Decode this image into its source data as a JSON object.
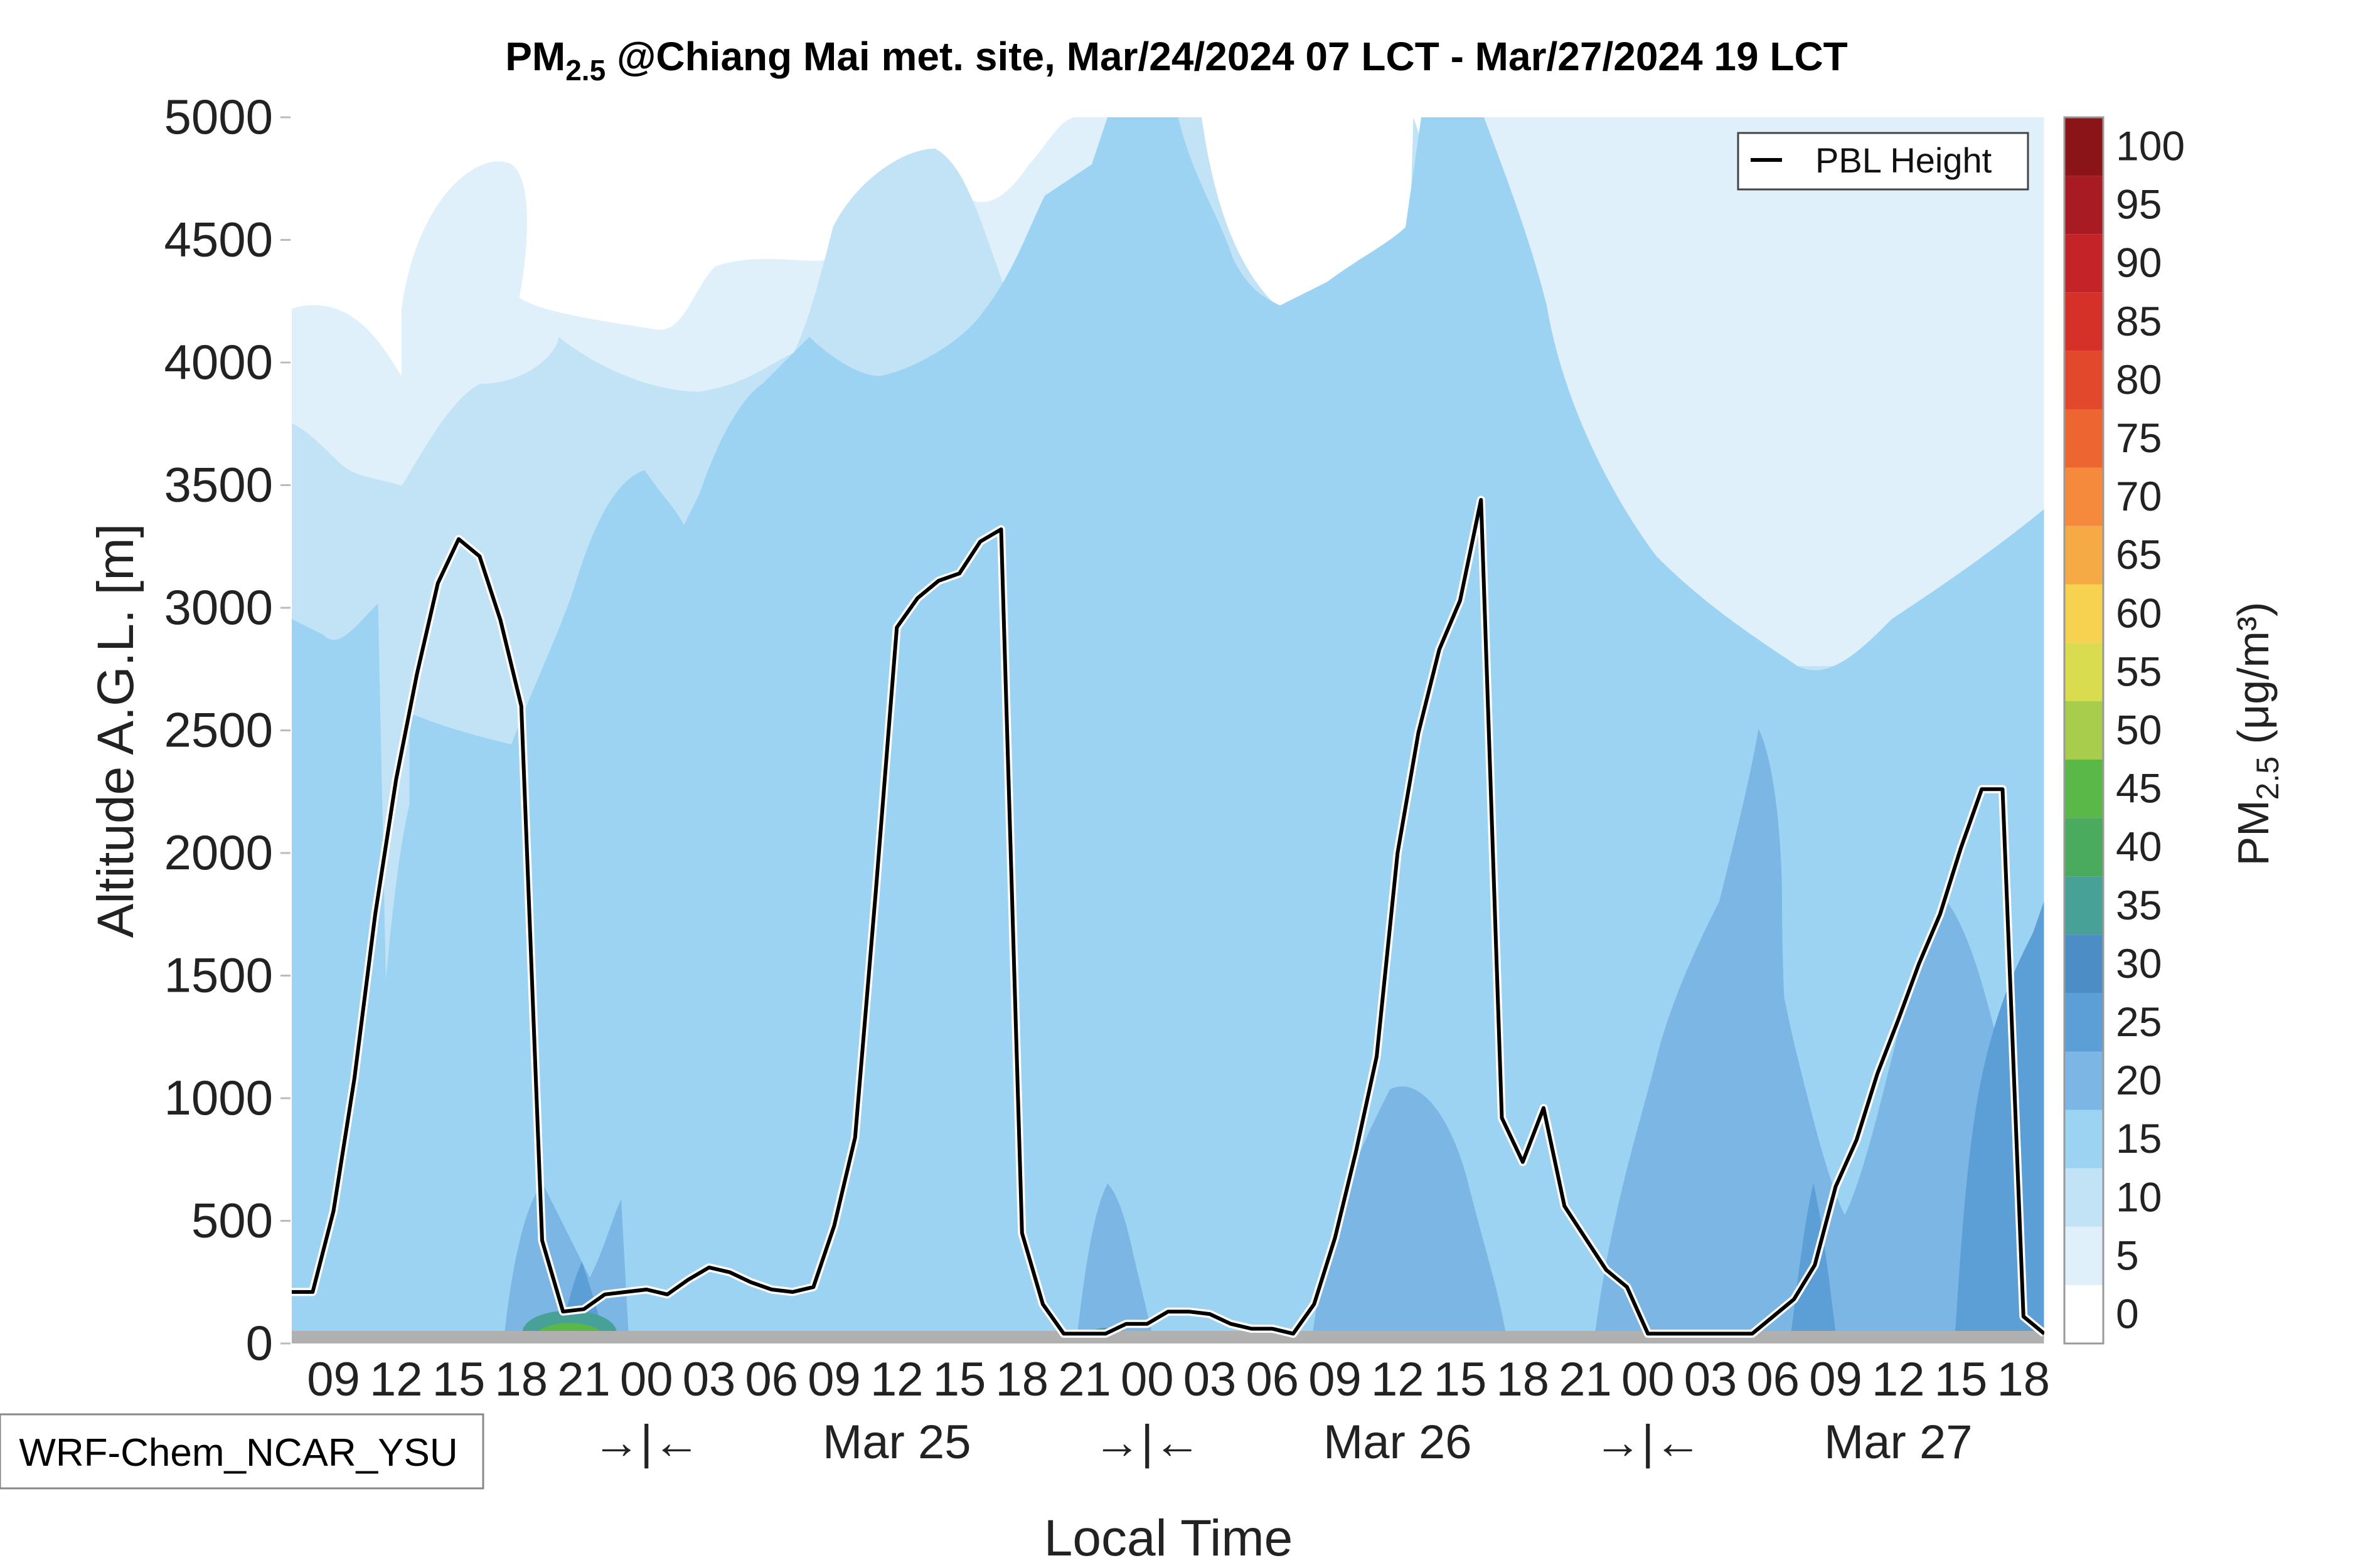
{
  "chart_data": {
    "type": "contour",
    "title_main": "PM",
    "title_sub": "2.5",
    "title_rest": " @Chiang Mai met. site, Mar/24/2024 07 LCT - Mar/27/2024 19 LCT",
    "xlabel": "Local Time",
    "ylabel": "Altitude A.G.L. [m]",
    "ylim": [
      0,
      5000
    ],
    "y_ticks": [
      "0",
      "500",
      "1000",
      "1500",
      "2000",
      "2500",
      "3000",
      "3500",
      "4000",
      "4500",
      "5000"
    ],
    "x_range_hours": [
      7,
      91
    ],
    "x_hour_ticks": [
      {
        "h": 9,
        "label": "09"
      },
      {
        "h": 12,
        "label": "12"
      },
      {
        "h": 15,
        "label": "15"
      },
      {
        "h": 18,
        "label": "18"
      },
      {
        "h": 21,
        "label": "21"
      },
      {
        "h": 24,
        "label": "00"
      },
      {
        "h": 27,
        "label": "03"
      },
      {
        "h": 30,
        "label": "06"
      },
      {
        "h": 33,
        "label": "09"
      },
      {
        "h": 36,
        "label": "12"
      },
      {
        "h": 39,
        "label": "15"
      },
      {
        "h": 42,
        "label": "18"
      },
      {
        "h": 45,
        "label": "21"
      },
      {
        "h": 48,
        "label": "00"
      },
      {
        "h": 51,
        "label": "03"
      },
      {
        "h": 54,
        "label": "06"
      },
      {
        "h": 57,
        "label": "09"
      },
      {
        "h": 60,
        "label": "12"
      },
      {
        "h": 63,
        "label": "15"
      },
      {
        "h": 66,
        "label": "18"
      },
      {
        "h": 69,
        "label": "21"
      },
      {
        "h": 72,
        "label": "00"
      },
      {
        "h": 75,
        "label": "03"
      },
      {
        "h": 78,
        "label": "06"
      },
      {
        "h": 81,
        "label": "09"
      },
      {
        "h": 84,
        "label": "12"
      },
      {
        "h": 87,
        "label": "15"
      },
      {
        "h": 90,
        "label": "18"
      }
    ],
    "x_second_row": [
      {
        "h": 24,
        "label": "→|←"
      },
      {
        "h": 36,
        "label": "Mar 25"
      },
      {
        "h": 48,
        "label": "→|←"
      },
      {
        "h": 60,
        "label": "Mar 26"
      },
      {
        "h": 72,
        "label": "→|←"
      },
      {
        "h": 84,
        "label": "Mar 27"
      }
    ],
    "legend": {
      "entry": "PBL Height",
      "position": "top-right"
    },
    "model_label": "WRF-Chem_NCAR_YSU",
    "colorbar": {
      "label_main": "PM",
      "label_sub": "2.5",
      "label_units": " (μg/m³)",
      "tick_labels": [
        "0",
        "5",
        "10",
        "15",
        "20",
        "25",
        "30",
        "35",
        "40",
        "45",
        "50",
        "55",
        "60",
        "65",
        "70",
        "75",
        "80",
        "85",
        "90",
        "95",
        "100"
      ],
      "levels": [
        0,
        5,
        10,
        15,
        20,
        25,
        30,
        35,
        40,
        45,
        50,
        55,
        60,
        65,
        70,
        75,
        80,
        85,
        90,
        95,
        100,
        105
      ],
      "colors": [
        "#ffffff",
        "#e0f0fa",
        "#c2e3f6",
        "#9dd3f2",
        "#7bb6e4",
        "#5c9fd6",
        "#4b8dc4",
        "#48a196",
        "#4aaa5e",
        "#5ab848",
        "#a8cc4c",
        "#d8dc4e",
        "#f6d250",
        "#f6aa46",
        "#f5893c",
        "#ed6632",
        "#e2482b",
        "#d63128",
        "#c42427",
        "#a81b22",
        "#8b1418"
      ]
    },
    "series": [
      {
        "name": "PBL Height",
        "x": [
          7,
          8,
          9,
          10,
          11,
          12,
          13,
          14,
          15,
          16,
          17,
          18,
          19,
          20,
          21,
          22,
          23,
          24,
          25,
          26,
          27,
          28,
          29,
          30,
          31,
          32,
          33,
          34,
          35,
          36,
          37,
          38,
          39,
          40,
          41,
          42,
          43,
          44,
          45,
          46,
          47,
          48,
          49,
          50,
          51,
          52,
          53,
          54,
          55,
          56,
          57,
          58,
          59,
          60,
          61,
          62,
          63,
          64,
          65,
          66,
          67,
          68,
          69,
          70,
          71,
          72,
          73,
          74,
          75,
          76,
          77,
          78,
          79,
          80,
          81,
          82,
          83,
          84,
          85,
          86,
          87,
          88,
          89,
          90,
          91
        ],
        "y": [
          210,
          210,
          540,
          1080,
          1750,
          2300,
          2730,
          3100,
          3280,
          3210,
          2950,
          2600,
          420,
          130,
          140,
          200,
          210,
          220,
          200,
          260,
          310,
          290,
          250,
          220,
          210,
          230,
          480,
          840,
          1850,
          2920,
          3040,
          3110,
          3140,
          3270,
          3320,
          450,
          160,
          40,
          40,
          40,
          80,
          80,
          130,
          130,
          120,
          80,
          60,
          60,
          40,
          160,
          430,
          780,
          1170,
          2000,
          2490,
          2830,
          3030,
          3440,
          920,
          740,
          960,
          560,
          430,
          300,
          230,
          40,
          40,
          40,
          40,
          40,
          40,
          110,
          180,
          320,
          640,
          830,
          1100,
          1320,
          1550,
          1750,
          2020,
          2260,
          2260,
          110,
          40
        ]
      }
    ]
  }
}
